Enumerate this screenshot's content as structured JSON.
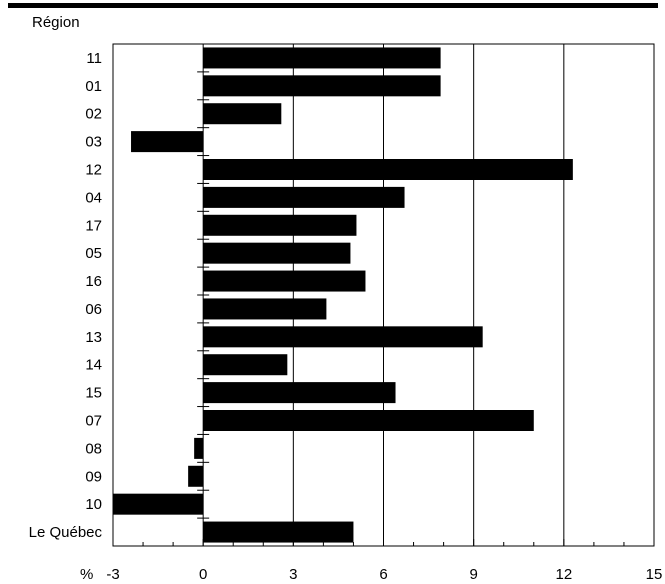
{
  "chart_data": {
    "type": "bar",
    "orientation": "horizontal",
    "ylabel": "Région",
    "xlabel": "%",
    "categories": [
      "11",
      "01",
      "02",
      "03",
      "12",
      "04",
      "17",
      "05",
      "16",
      "06",
      "13",
      "14",
      "15",
      "07",
      "08",
      "09",
      "10",
      "Le Québec"
    ],
    "values": [
      7.9,
      7.9,
      2.6,
      -2.4,
      12.3,
      6.7,
      5.1,
      4.9,
      5.4,
      4.1,
      9.3,
      2.8,
      6.4,
      11.0,
      -0.3,
      -0.5,
      -3.0,
      5.0
    ],
    "xlim": [
      -3,
      15
    ],
    "xticks": [
      -3,
      0,
      3,
      6,
      9,
      12,
      15
    ],
    "xtick_labels": [
      "-3",
      "0",
      "3",
      "6",
      "9",
      "12",
      "15"
    ],
    "grid": "vertical",
    "bar_color": "#000000"
  }
}
